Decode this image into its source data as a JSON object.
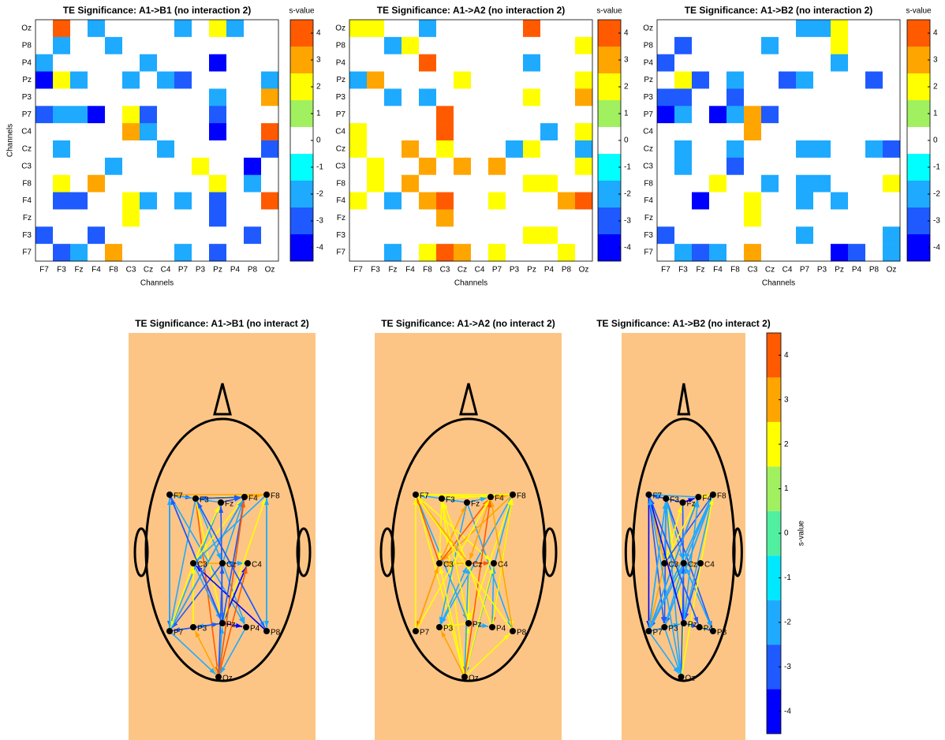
{
  "chart_data": [
    {
      "type": "heatmap",
      "title": "TE Significance: A1->B1 (no interaction 2)",
      "xlabel": "Channels",
      "ylabel": "Channels",
      "xticklabels": [
        "F7",
        "F3",
        "Fz",
        "F4",
        "F8",
        "C3",
        "Cz",
        "C4",
        "P7",
        "P3",
        "Pz",
        "P4",
        "P8",
        "Oz"
      ],
      "yticklabels": [
        "Oz",
        "P8",
        "P4",
        "Pz",
        "P3",
        "P7",
        "C4",
        "Cz",
        "C3",
        "F8",
        "F4",
        "Fz",
        "F3",
        "F7"
      ],
      "z": [
        [
          0,
          4,
          0,
          -2,
          0,
          0,
          0,
          0,
          -2,
          0,
          2,
          -2,
          0,
          0
        ],
        [
          0,
          -2,
          0,
          0,
          -2,
          0,
          0,
          0,
          0,
          0,
          0,
          0,
          0,
          0
        ],
        [
          -2,
          0,
          0,
          0,
          0,
          0,
          -2,
          0,
          0,
          0,
          -4,
          0,
          0,
          0
        ],
        [
          -4,
          2,
          -2,
          0,
          0,
          -2,
          0,
          -2,
          -3,
          0,
          0,
          0,
          0,
          -2
        ],
        [
          0,
          0,
          0,
          0,
          0,
          0,
          0,
          0,
          0,
          0,
          -2,
          0,
          0,
          3
        ],
        [
          -3,
          -2,
          -2,
          -4,
          0,
          2,
          -3,
          0,
          0,
          0,
          -3,
          0,
          0,
          0
        ],
        [
          0,
          0,
          0,
          0,
          0,
          3,
          -2,
          0,
          0,
          0,
          -4,
          0,
          0,
          4
        ],
        [
          0,
          -2,
          0,
          0,
          0,
          0,
          0,
          -2,
          0,
          0,
          0,
          0,
          0,
          -3
        ],
        [
          0,
          0,
          0,
          0,
          -2,
          0,
          0,
          0,
          0,
          2,
          0,
          0,
          -4,
          0
        ],
        [
          0,
          2,
          0,
          3,
          0,
          0,
          0,
          0,
          0,
          0,
          2,
          0,
          -2,
          0
        ],
        [
          0,
          -3,
          -3,
          0,
          0,
          2,
          -2,
          0,
          -2,
          0,
          -3,
          0,
          0,
          4
        ],
        [
          0,
          0,
          0,
          0,
          0,
          2,
          0,
          0,
          0,
          0,
          -3,
          0,
          0,
          0
        ],
        [
          -3,
          0,
          0,
          -3,
          0,
          0,
          0,
          0,
          0,
          0,
          0,
          0,
          -3,
          0
        ],
        [
          0,
          -3,
          -2,
          0,
          3,
          0,
          0,
          0,
          -2,
          0,
          -3,
          0,
          0,
          0
        ]
      ],
      "colorbar": {
        "label": "s-value",
        "clim": [
          -4.5,
          4.5
        ],
        "ticks": [
          -4,
          -3,
          -2,
          -1,
          0,
          1,
          2,
          3,
          4
        ],
        "colors": [
          "#0000ff",
          "#1e5aff",
          "#1eaaff",
          "#00ffff",
          "#ffffff",
          "#a0f060",
          "#ffff00",
          "#ffa500",
          "#ff5a00"
        ]
      }
    },
    {
      "type": "heatmap",
      "title": "TE Significance: A1->A2 (no interaction 2)",
      "xlabel": "Channels",
      "xticklabels": [
        "F7",
        "F3",
        "Fz",
        "F4",
        "F8",
        "C3",
        "Cz",
        "C4",
        "P7",
        "P3",
        "Pz",
        "P4",
        "P8",
        "Oz"
      ],
      "yticklabels": [
        "Oz",
        "P8",
        "P4",
        "Pz",
        "P3",
        "P7",
        "C4",
        "Cz",
        "C3",
        "F8",
        "F4",
        "Fz",
        "F3",
        "F7"
      ],
      "z": [
        [
          2,
          2,
          0,
          0,
          -2,
          0,
          0,
          0,
          0,
          0,
          4,
          0,
          0,
          0
        ],
        [
          0,
          0,
          -2,
          2,
          0,
          0,
          0,
          0,
          0,
          0,
          0,
          0,
          0,
          2
        ],
        [
          0,
          0,
          0,
          0,
          4,
          0,
          0,
          0,
          0,
          0,
          -2,
          0,
          0,
          0
        ],
        [
          -2,
          3,
          0,
          0,
          0,
          0,
          2,
          0,
          0,
          0,
          0,
          0,
          0,
          2
        ],
        [
          0,
          0,
          -2,
          0,
          -2,
          0,
          0,
          0,
          0,
          0,
          2,
          0,
          0,
          3
        ],
        [
          0,
          0,
          0,
          0,
          0,
          4,
          0,
          0,
          0,
          0,
          0,
          0,
          0,
          0
        ],
        [
          2,
          0,
          0,
          0,
          0,
          4,
          0,
          0,
          0,
          0,
          0,
          -2,
          0,
          2
        ],
        [
          2,
          0,
          0,
          3,
          0,
          2,
          0,
          0,
          0,
          -2,
          2,
          0,
          0,
          -2
        ],
        [
          0,
          2,
          0,
          0,
          3,
          0,
          3,
          0,
          3,
          0,
          0,
          0,
          0,
          2
        ],
        [
          0,
          2,
          0,
          3,
          0,
          0,
          0,
          0,
          0,
          0,
          2,
          2,
          0,
          0
        ],
        [
          2,
          0,
          -2,
          0,
          3,
          4,
          0,
          0,
          2,
          0,
          0,
          0,
          3,
          4
        ],
        [
          0,
          0,
          0,
          0,
          0,
          3,
          0,
          0,
          0,
          0,
          0,
          0,
          0,
          0
        ],
        [
          0,
          0,
          0,
          0,
          0,
          0,
          0,
          0,
          0,
          0,
          2,
          2,
          0,
          0
        ],
        [
          0,
          0,
          -2,
          0,
          2,
          4,
          3,
          0,
          2,
          0,
          0,
          0,
          2,
          0
        ]
      ],
      "colorbar": {
        "label": "s-value",
        "clim": [
          -4.5,
          4.5
        ],
        "ticks": [
          -4,
          -3,
          -2,
          -1,
          0,
          1,
          2,
          3,
          4
        ],
        "colors": [
          "#0000ff",
          "#1e5aff",
          "#1eaaff",
          "#00ffff",
          "#ffffff",
          "#a0f060",
          "#ffff00",
          "#ffa500",
          "#ff5a00"
        ]
      }
    },
    {
      "type": "heatmap",
      "title": "TE Significance: A1->B2 (no interaction 2)",
      "xlabel": "Channels",
      "xticklabels": [
        "F7",
        "F3",
        "Fz",
        "F4",
        "F8",
        "C3",
        "Cz",
        "C4",
        "P7",
        "P3",
        "Pz",
        "P4",
        "P8",
        "Oz"
      ],
      "yticklabels": [
        "Oz",
        "P8",
        "P4",
        "Pz",
        "P3",
        "P7",
        "C4",
        "Cz",
        "C3",
        "F8",
        "F4",
        "Fz",
        "F3",
        "F7"
      ],
      "z": [
        [
          0,
          0,
          0,
          0,
          0,
          0,
          0,
          0,
          -2,
          -2,
          2,
          0,
          0,
          0
        ],
        [
          0,
          -3,
          0,
          0,
          0,
          0,
          -2,
          0,
          0,
          0,
          2,
          0,
          0,
          0
        ],
        [
          -3,
          0,
          0,
          0,
          0,
          0,
          0,
          0,
          0,
          0,
          -2,
          0,
          0,
          0
        ],
        [
          0,
          2,
          -3,
          0,
          -2,
          0,
          0,
          -3,
          -2,
          0,
          0,
          0,
          -3,
          0
        ],
        [
          -3,
          -3,
          0,
          0,
          -3,
          0,
          0,
          0,
          0,
          0,
          0,
          0,
          0,
          0
        ],
        [
          -4,
          -2,
          0,
          -4,
          -2,
          3,
          -3,
          0,
          0,
          0,
          0,
          0,
          0,
          0
        ],
        [
          0,
          0,
          0,
          0,
          0,
          3,
          0,
          0,
          0,
          0,
          0,
          0,
          0,
          0
        ],
        [
          0,
          -2,
          0,
          0,
          -2,
          0,
          0,
          0,
          -2,
          -2,
          0,
          0,
          -2,
          -3
        ],
        [
          0,
          -2,
          0,
          0,
          -3,
          0,
          0,
          0,
          0,
          0,
          0,
          0,
          0,
          0
        ],
        [
          0,
          0,
          0,
          2,
          0,
          0,
          -2,
          0,
          -2,
          -2,
          0,
          0,
          0,
          2
        ],
        [
          0,
          0,
          -4,
          0,
          0,
          2,
          0,
          0,
          -2,
          0,
          -2,
          0,
          0,
          0
        ],
        [
          0,
          0,
          0,
          0,
          0,
          2,
          0,
          0,
          0,
          0,
          0,
          0,
          0,
          0
        ],
        [
          -3,
          0,
          0,
          0,
          0,
          0,
          0,
          0,
          -2,
          0,
          0,
          0,
          0,
          -2
        ],
        [
          0,
          -2,
          -3,
          -2,
          0,
          3,
          0,
          0,
          0,
          0,
          -4,
          -3,
          0,
          -2
        ]
      ],
      "colorbar": {
        "label": "s-value",
        "clim": [
          -4.5,
          4.5
        ],
        "ticks": [
          -4,
          -3,
          -2,
          -1,
          0,
          1,
          2,
          3,
          4
        ],
        "colors": [
          "#0000ff",
          "#1e5aff",
          "#1eaaff",
          "#00ffff",
          "#ffffff",
          "#a0f060",
          "#ffff00",
          "#ffa500",
          "#ff5a00"
        ]
      }
    },
    {
      "type": "head",
      "title": "TE Significance: A1->B1 (no interact 2)",
      "nodes": [
        "F7",
        "F3",
        "Fz",
        "F4",
        "F8",
        "C3",
        "Cz",
        "C4",
        "P7",
        "P3",
        "Pz",
        "P4",
        "P8",
        "Oz"
      ]
    },
    {
      "type": "head",
      "title": "TE Significance: A1->A2 (no interact 2)",
      "nodes": [
        "F7",
        "F3",
        "Fz",
        "F4",
        "F8",
        "C3",
        "Cz",
        "C4",
        "P7",
        "P3",
        "Pz",
        "P4",
        "P8",
        "Oz"
      ]
    },
    {
      "type": "head",
      "title": "TE Significance: A1->B2 (no interact 2)",
      "nodes": [
        "F7",
        "F3",
        "Fz",
        "F4",
        "F8",
        "C3",
        "Cz",
        "C4",
        "P7",
        "P3",
        "Pz",
        "P4",
        "P8",
        "Oz"
      ]
    },
    {
      "type": "colorbar",
      "label": "s-value",
      "clim": [
        -4.5,
        4.5
      ],
      "ticks": [
        -4,
        -3,
        -2,
        -1,
        0,
        1,
        2,
        3,
        4
      ],
      "colors": [
        "#0000ff",
        "#1e5aff",
        "#1eaaff",
        "#00e8ff",
        "#50f0a0",
        "#a0f060",
        "#ffff00",
        "#ffa500",
        "#ff5a00"
      ]
    }
  ]
}
